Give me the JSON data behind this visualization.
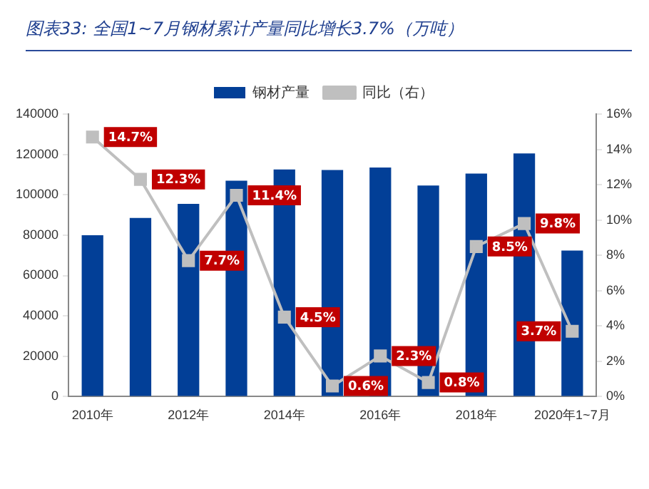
{
  "chart_data": {
    "type": "bar",
    "title": "图表33:  全国1~7月钢材累计产量同比增长3.7%（万吨）",
    "categories": [
      "2010年",
      null,
      "2012年",
      null,
      "2014年",
      null,
      "2016年",
      null,
      "2018年",
      null,
      "2020年1~7月"
    ],
    "series": [
      {
        "name": "钢材产量",
        "color": "#023f97",
        "values": [
          80000,
          88500,
          95500,
          107000,
          112500,
          112300,
          113500,
          104600,
          110500,
          120500,
          72400
        ]
      },
      {
        "name": "同比（右）",
        "type": "line",
        "axis": "y2",
        "color": "#bfbfbf",
        "marker": "square",
        "values": [
          14.7,
          12.3,
          7.7,
          11.4,
          4.5,
          0.6,
          2.3,
          0.8,
          8.5,
          9.8,
          3.7
        ],
        "value_labels": [
          "14.7%",
          "12.3%",
          "7.7%",
          "11.4%",
          "4.5%",
          "0.6%",
          "2.3%",
          "0.8%",
          "8.5%",
          "9.8%",
          "3.7%"
        ]
      }
    ],
    "ylim": [
      0,
      140000
    ],
    "yticks": [
      0,
      20000,
      40000,
      60000,
      80000,
      100000,
      120000,
      140000
    ],
    "y2lim": [
      0,
      16
    ],
    "y2ticks": [
      {
        "value": 0,
        "label": "0%"
      },
      {
        "value": 2,
        "label": "2%"
      },
      {
        "value": 4,
        "label": "4%"
      },
      {
        "value": 6,
        "label": "6%"
      },
      {
        "value": 8,
        "label": "8%"
      },
      {
        "value": 10,
        "label": "10%"
      },
      {
        "value": 12,
        "label": "12%"
      },
      {
        "value": 14,
        "label": "14%"
      },
      {
        "value": 16,
        "label": "16%"
      }
    ],
    "grid": false,
    "legend": "top"
  }
}
